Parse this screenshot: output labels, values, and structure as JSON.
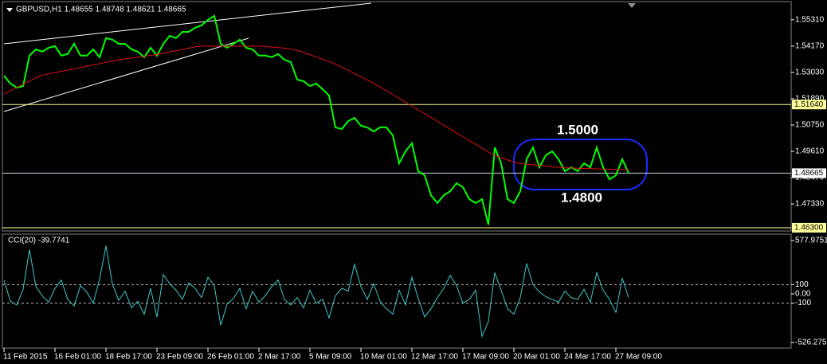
{
  "chart_data": [
    {
      "type": "line",
      "title": "GBPUSD,H1 1.48655 1.48748 1.48621 1.48665",
      "categories": [
        "11 Feb 2015",
        null,
        null,
        null,
        null,
        null,
        null,
        null,
        "16 Feb 01:00",
        null,
        null,
        null,
        null,
        null,
        null,
        null,
        "18 Feb 17:00",
        null,
        null,
        null,
        null,
        null,
        null,
        null,
        "23 Feb 09:00",
        null,
        null,
        null,
        null,
        null,
        null,
        null,
        "26 Feb 01:00",
        null,
        null,
        null,
        null,
        null,
        null,
        null,
        "2 Mar 17:00",
        null,
        null,
        null,
        null,
        null,
        null,
        null,
        "5 Mar 09:00",
        null,
        null,
        null,
        null,
        null,
        null,
        null,
        "10 Mar 01:00",
        null,
        null,
        null,
        null,
        null,
        null,
        null,
        "12 Mar 17:00",
        null,
        null,
        null,
        null,
        null,
        null,
        null,
        "17 Mar 09:00",
        null,
        null,
        null,
        null,
        null,
        null,
        null,
        "20 Mar 01:00",
        null,
        null,
        null,
        null,
        null,
        null,
        null,
        "24 Mar 17:00",
        null,
        null,
        null,
        null,
        null,
        null,
        null,
        "27 Mar 09:00",
        null,
        null
      ],
      "series": [
        {
          "color": "#00ff00",
          "values": [
            1.5289,
            1.5255,
            1.5237,
            1.5244,
            1.5376,
            1.5403,
            1.5393,
            1.541,
            1.5417,
            1.5376,
            1.5383,
            1.5427,
            1.5376,
            1.5376,
            1.5403,
            1.5369,
            1.5452,
            1.5445,
            1.5427,
            1.5427,
            1.5403,
            1.5393,
            1.5369,
            1.541,
            1.5376,
            1.5427,
            1.5462,
            1.5452,
            1.5479,
            1.5479,
            1.5497,
            1.5507,
            1.5531,
            1.5548,
            1.5427,
            1.541,
            1.5427,
            1.5445,
            1.541,
            1.5403,
            1.5376,
            1.5376,
            1.5369,
            1.5383,
            1.5358,
            1.5348,
            1.5272,
            1.5265,
            1.5244,
            1.5255,
            1.523,
            1.5203,
            1.5065,
            1.5058,
            1.5092,
            1.5106,
            1.5072,
            1.5065,
            1.5047,
            1.5065,
            1.5065,
            1.503,
            1.4909,
            1.4961,
            1.4996,
            1.4875,
            1.4857,
            1.4771,
            1.4737,
            1.4771,
            1.4788,
            1.4823,
            1.4806,
            1.4754,
            1.4737,
            1.4754,
            1.4643,
            1.4978,
            1.4909,
            1.4754,
            1.4737,
            1.4788,
            1.4927,
            1.4978,
            1.4892,
            1.4944,
            1.4961,
            1.4927,
            1.4875,
            1.4892,
            1.4875,
            1.4909,
            1.4892,
            1.4978,
            1.4892,
            1.484,
            1.4857,
            1.4927,
            1.4867
          ]
        },
        {
          "color": "#e01010",
          "values": [
            1.521,
            1.5224,
            1.5238,
            1.5252,
            1.5266,
            1.528,
            1.5291,
            1.5297,
            1.5302,
            1.5308,
            1.5313,
            1.5319,
            1.5324,
            1.533,
            1.5336,
            1.5341,
            1.5347,
            1.5352,
            1.5358,
            1.5362,
            1.5366,
            1.5369,
            1.5373,
            1.5377,
            1.5381,
            1.5386,
            1.5392,
            1.5397,
            1.5403,
            1.5408,
            1.5414,
            1.5417,
            1.5417,
            1.5417,
            1.5417,
            1.5417,
            1.5417,
            1.5417,
            1.5417,
            1.5417,
            1.5417,
            1.5416,
            1.5413,
            1.5411,
            1.5408,
            1.5405,
            1.5399,
            1.5389,
            1.538,
            1.537,
            1.536,
            1.535,
            1.5339,
            1.5326,
            1.5312,
            1.5298,
            1.5284,
            1.527,
            1.5256,
            1.524,
            1.5224,
            1.5207,
            1.519,
            1.5174,
            1.5157,
            1.5141,
            1.5124,
            1.5108,
            1.5091,
            1.5074,
            1.5058,
            1.5041,
            1.5025,
            1.5008,
            1.4992,
            1.4975,
            1.4958,
            1.4943,
            1.4934,
            1.4924,
            1.4915,
            1.4908,
            1.4906,
            1.4903,
            1.49,
            1.4897,
            1.4894,
            1.4892,
            1.489,
            1.4889,
            1.4888,
            1.4887,
            1.4886,
            1.4885,
            1.4884,
            1.4884,
            1.4883,
            1.4882,
            1.4882
          ]
        }
      ],
      "ylim": [
        1.4616,
        1.561
      ],
      "yticks": [
        {
          "value": 1.5531,
          "label": "1.55310"
        },
        {
          "value": 1.5417,
          "label": "1.54170"
        },
        {
          "value": 1.5303,
          "label": "1.53030"
        },
        {
          "value": 1.5189,
          "label": "1.51890"
        },
        {
          "value": 1.5075,
          "label": "1.50750"
        },
        {
          "value": 1.4961,
          "label": "1.49610"
        },
        {
          "value": 1.4847,
          "label": "1.48470"
        },
        {
          "value": 1.4733,
          "label": "1.47330"
        }
      ],
      "hlines": [
        {
          "value": 1.5164,
          "label": "1.51640",
          "color": "#ffff99"
        },
        {
          "value": 1.48665,
          "label": "1.48665",
          "color": "#c8d0e0"
        },
        {
          "value": 1.463,
          "label": "1.46300",
          "color": "#ffff99"
        }
      ],
      "annotations": [
        "1.5000",
        "1.4800"
      ]
    },
    {
      "type": "line",
      "title": "CCI(20) -39.7741",
      "series": [
        {
          "color": "#40c8c8",
          "values": [
            150,
            -80,
            -120,
            50,
            480,
            80,
            -20,
            -90,
            60,
            150,
            -60,
            -130,
            90,
            20,
            -100,
            160,
            520,
            110,
            -70,
            30,
            -150,
            -80,
            -220,
            60,
            -250,
            210,
            110,
            40,
            -60,
            120,
            60,
            -40,
            180,
            90,
            -340,
            -110,
            -50,
            60,
            -160,
            30,
            -90,
            -20,
            80,
            150,
            -60,
            -120,
            -40,
            -150,
            40,
            -100,
            -60,
            -260,
            -20,
            60,
            30,
            320,
            80,
            -60,
            110,
            -80,
            -160,
            -220,
            40,
            -120,
            180,
            -50,
            -250,
            -160,
            -40,
            60,
            200,
            90,
            -100,
            -60,
            40,
            -460,
            -300,
            230,
            40,
            -160,
            -220,
            -40,
            330,
            100,
            20,
            -30,
            -60,
            -90,
            30,
            -40,
            -60,
            50,
            -90,
            230,
            40,
            -60,
            -200,
            170,
            -39.7741
          ]
        }
      ],
      "ylim": [
        -526.2753,
        577.9751
      ],
      "yticks": [
        577.9751,
        100,
        {
          "value": 0,
          "label": "0.00"
        },
        -100,
        -526.2753
      ],
      "levels": [
        100,
        -100
      ]
    }
  ]
}
